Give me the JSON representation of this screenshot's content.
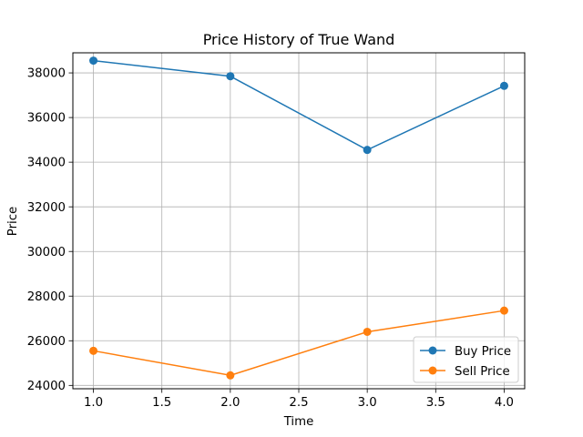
{
  "chart_data": {
    "type": "line",
    "title": "Price History of True Wand",
    "xlabel": "Time",
    "ylabel": "Price",
    "x": [
      1,
      2,
      3,
      4
    ],
    "xlim": [
      0.85,
      4.15
    ],
    "ylim": [
      23850,
      38900
    ],
    "xticks": [
      "1.0",
      "1.5",
      "2.0",
      "2.5",
      "3.0",
      "3.5",
      "4.0"
    ],
    "yticks": [
      "24000",
      "26000",
      "28000",
      "30000",
      "32000",
      "34000",
      "36000",
      "38000"
    ],
    "grid": true,
    "legend_position": "lower-right",
    "series": [
      {
        "name": "Buy Price",
        "color": "#1f77b4",
        "values": [
          38550,
          37850,
          34550,
          37420
        ]
      },
      {
        "name": "Sell Price",
        "color": "#ff7f0e",
        "values": [
          25550,
          24450,
          26400,
          27350
        ]
      }
    ]
  }
}
